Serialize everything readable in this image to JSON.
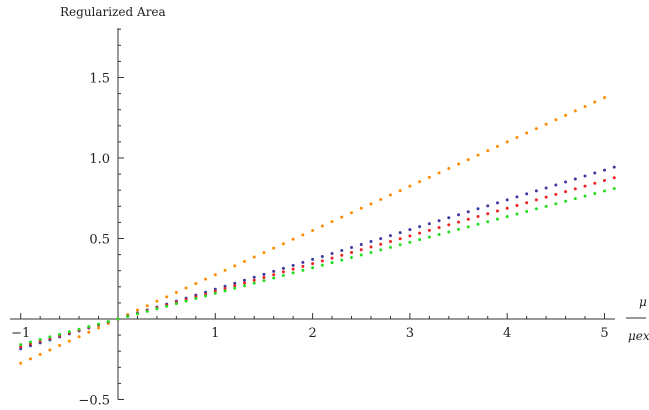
{
  "chart_data": {
    "type": "scatter",
    "ylabel": "Regularized Area",
    "xlabel_num": "μ",
    "xlabel_den": "μext",
    "xlim": [
      -1,
      5.12
    ],
    "ylim": [
      -0.5,
      1.8
    ],
    "x_ticks": [
      {
        "value": -1,
        "label": "−1"
      },
      {
        "value": 1,
        "label": "1"
      },
      {
        "value": 2,
        "label": "2"
      },
      {
        "value": 3,
        "label": "3"
      },
      {
        "value": 4,
        "label": "4"
      },
      {
        "value": 5,
        "label": "5"
      }
    ],
    "y_ticks": [
      {
        "value": -0.5,
        "label": "−0.5"
      },
      {
        "value": 0.5,
        "label": "0.5"
      },
      {
        "value": 1.0,
        "label": "1.0"
      },
      {
        "value": 1.5,
        "label": "1.5"
      }
    ],
    "grid": false,
    "series": [
      {
        "color": "#ff8c00",
        "x_start": -1.0,
        "x_end": 5.0,
        "step": 0.1,
        "slope": 0.275
      },
      {
        "color": "#3a3aa0",
        "x_start": -1.0,
        "x_end": 5.12,
        "step": 0.1,
        "slope": 0.185
      },
      {
        "color": "#ee2222",
        "x_start": -1.0,
        "x_end": 5.12,
        "step": 0.1,
        "slope": 0.172
      },
      {
        "color": "#22dd22",
        "x_start": -1.0,
        "x_end": 5.12,
        "step": 0.1,
        "slope": 0.159
      }
    ]
  }
}
